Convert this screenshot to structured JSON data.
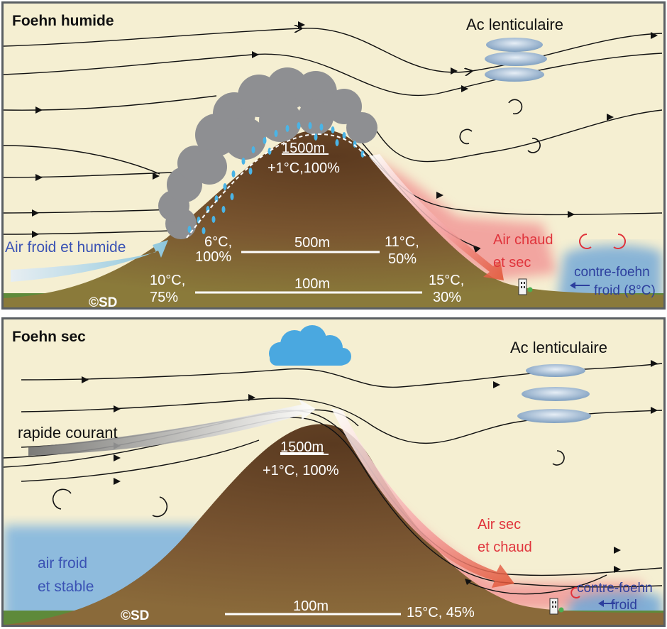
{
  "top": {
    "title": "Foehn humide",
    "ac_label": "Ac lenticulaire",
    "inflow_label": "Air froid et humide",
    "summit": {
      "alt": "1500m",
      "cond": "+1°C,100%"
    },
    "level500": {
      "alt": "500m",
      "left_a": "6°C,",
      "left_b": "100%",
      "right_a": "11°C,",
      "right_b": "50%"
    },
    "level100": {
      "alt": "100m",
      "left_a": "10°C,",
      "left_b": "75%",
      "right_a": "15°C,",
      "right_b": "30%"
    },
    "warm_a": "Air chaud",
    "warm_b": "et sec",
    "counter_a": "contre-foehn",
    "counter_b": "froid (8°C)",
    "signature": "©SD"
  },
  "bottom": {
    "title": "Foehn sec",
    "ac_label": "Ac lenticulaire",
    "jet_label": "rapide courant",
    "summit": {
      "alt": "1500m",
      "cond": "+1°C, 100%"
    },
    "cold_a": "air froid",
    "cold_b": "et stable",
    "level100": {
      "alt": "100m",
      "right": "15°C, 45%"
    },
    "warm_a": "Air sec",
    "warm_b": "et chaud",
    "counter_a": "contre-foehn",
    "counter_b": "froid",
    "signature": "©SD"
  },
  "colors": {
    "background": "#f5efd2",
    "frame": "#5a5f63",
    "mountain": "#7a4d2c",
    "cloud": "#8e8f92",
    "rain": "#4ab4e6",
    "warm_air": "#f06a78",
    "cold_air": "#6ea6d8",
    "text_blue": "#2d3f9e",
    "text_red": "#e0343c"
  }
}
